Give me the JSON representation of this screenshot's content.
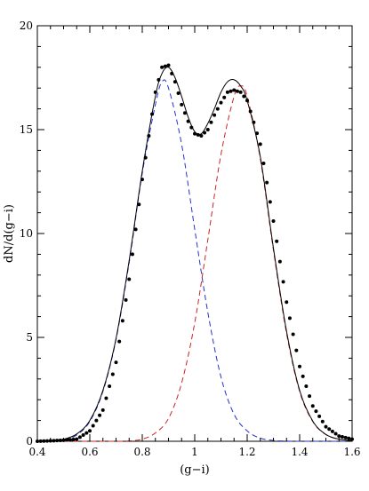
{
  "chart_data": {
    "type": "line",
    "xlabel": "(g−i)",
    "ylabel": "dN/d(g−i)",
    "xlim": [
      0.4,
      1.6
    ],
    "ylim": [
      0,
      20
    ],
    "x_ticks": [
      0.4,
      0.6,
      0.8,
      1,
      1.2,
      1.4,
      1.6
    ],
    "x_tick_labels": [
      "0.4",
      "0.6",
      "0.8",
      "1",
      "1.2",
      "1.4",
      "1.6"
    ],
    "y_ticks": [
      0,
      5,
      10,
      15,
      20
    ],
    "y_tick_labels": [
      "0",
      "5",
      "10",
      "15",
      "20"
    ],
    "grid": false,
    "legend": "none",
    "series": [
      {
        "style": "dashed",
        "color": "#2233cc",
        "points": [
          [
            0.4,
            0.0
          ],
          [
            0.45,
            0.02
          ],
          [
            0.5,
            0.08
          ],
          [
            0.55,
            0.3
          ],
          [
            0.6,
            0.95
          ],
          [
            0.65,
            2.4
          ],
          [
            0.7,
            4.9
          ],
          [
            0.75,
            8.6
          ],
          [
            0.8,
            12.9
          ],
          [
            0.85,
            16.2
          ],
          [
            0.875,
            17.3
          ],
          [
            0.9,
            17.0
          ],
          [
            0.95,
            14.3
          ],
          [
            1.0,
            10.2
          ],
          [
            1.05,
            6.2
          ],
          [
            1.1,
            3.1
          ],
          [
            1.15,
            1.3
          ],
          [
            1.2,
            0.5
          ],
          [
            1.25,
            0.15
          ],
          [
            1.3,
            0.04
          ],
          [
            1.35,
            0.01
          ],
          [
            1.4,
            0.0
          ],
          [
            1.6,
            0.0
          ]
        ]
      },
      {
        "style": "dashed",
        "color": "#cc2222",
        "points": [
          [
            0.4,
            0.0
          ],
          [
            0.7,
            0.0
          ],
          [
            0.75,
            0.02
          ],
          [
            0.8,
            0.1
          ],
          [
            0.85,
            0.4
          ],
          [
            0.9,
            1.1
          ],
          [
            0.95,
            2.8
          ],
          [
            1.0,
            5.7
          ],
          [
            1.05,
            9.7
          ],
          [
            1.1,
            13.8
          ],
          [
            1.15,
            16.6
          ],
          [
            1.175,
            17.1
          ],
          [
            1.2,
            16.6
          ],
          [
            1.25,
            13.6
          ],
          [
            1.3,
            9.2
          ],
          [
            1.35,
            5.2
          ],
          [
            1.4,
            2.4
          ],
          [
            1.45,
            0.95
          ],
          [
            1.5,
            0.32
          ],
          [
            1.55,
            0.1
          ],
          [
            1.6,
            0.02
          ]
        ]
      },
      {
        "style": "solid",
        "color": "#000000",
        "points": [
          [
            0.4,
            0.0
          ],
          [
            0.45,
            0.03
          ],
          [
            0.5,
            0.1
          ],
          [
            0.55,
            0.35
          ],
          [
            0.6,
            1.0
          ],
          [
            0.65,
            2.45
          ],
          [
            0.7,
            4.95
          ],
          [
            0.75,
            8.7
          ],
          [
            0.8,
            13.0
          ],
          [
            0.85,
            16.6
          ],
          [
            0.875,
            17.7
          ],
          [
            0.9,
            18.0
          ],
          [
            0.925,
            17.5
          ],
          [
            0.95,
            16.6
          ],
          [
            0.975,
            15.6
          ],
          [
            1.0,
            14.9
          ],
          [
            1.025,
            14.8
          ],
          [
            1.05,
            15.3
          ],
          [
            1.075,
            16.0
          ],
          [
            1.1,
            16.8
          ],
          [
            1.125,
            17.3
          ],
          [
            1.15,
            17.4
          ],
          [
            1.175,
            17.1
          ],
          [
            1.2,
            16.4
          ],
          [
            1.25,
            13.7
          ],
          [
            1.3,
            9.3
          ],
          [
            1.35,
            5.3
          ],
          [
            1.4,
            2.45
          ],
          [
            1.45,
            0.97
          ],
          [
            1.5,
            0.33
          ],
          [
            1.55,
            0.1
          ],
          [
            1.6,
            0.03
          ]
        ]
      },
      {
        "style": "dotted",
        "color": "#000000",
        "points": [
          [
            0.4,
            0.0
          ],
          [
            0.45,
            0.02
          ],
          [
            0.5,
            0.05
          ],
          [
            0.55,
            0.1
          ],
          [
            0.6,
            0.5
          ],
          [
            0.65,
            1.5
          ],
          [
            0.7,
            3.8
          ],
          [
            0.75,
            7.8
          ],
          [
            0.8,
            12.6
          ],
          [
            0.85,
            16.8
          ],
          [
            0.875,
            18.0
          ],
          [
            0.9,
            18.1
          ],
          [
            0.925,
            17.3
          ],
          [
            0.95,
            16.2
          ],
          [
            0.975,
            15.4
          ],
          [
            1.0,
            14.8
          ],
          [
            1.025,
            14.7
          ],
          [
            1.05,
            15.0
          ],
          [
            1.075,
            15.7
          ],
          [
            1.1,
            16.3
          ],
          [
            1.125,
            16.8
          ],
          [
            1.15,
            16.9
          ],
          [
            1.175,
            16.8
          ],
          [
            1.2,
            16.4
          ],
          [
            1.25,
            14.3
          ],
          [
            1.3,
            10.6
          ],
          [
            1.35,
            6.7
          ],
          [
            1.4,
            3.6
          ],
          [
            1.45,
            1.7
          ],
          [
            1.5,
            0.7
          ],
          [
            1.55,
            0.25
          ],
          [
            1.6,
            0.1
          ]
        ]
      }
    ]
  }
}
